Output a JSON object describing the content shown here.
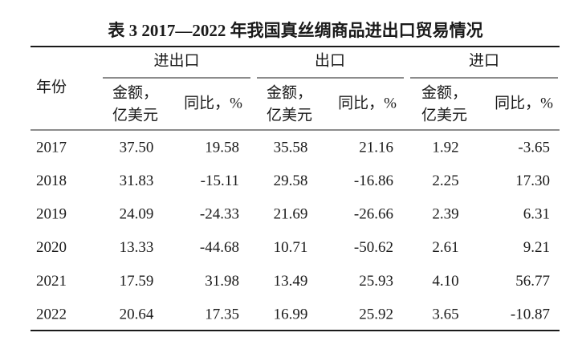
{
  "title": "表 3 2017—2022 年我国真丝绸商品进出口贸易情况",
  "header": {
    "year": "年份",
    "groups": [
      {
        "label": "进出口",
        "amount": [
          "金额，",
          "亿美元"
        ],
        "ratio": "同比，%"
      },
      {
        "label": "出口",
        "amount": [
          "金额，",
          "亿美元"
        ],
        "ratio": "同比，%"
      },
      {
        "label": "进口",
        "amount": [
          "金额，",
          "亿美元"
        ],
        "ratio": "同比，%"
      }
    ]
  },
  "rows": [
    [
      "2017",
      "37.50",
      "19.58",
      "35.58",
      "21.16",
      "1.92",
      "-3.65"
    ],
    [
      "2018",
      "31.83",
      "-15.11",
      "29.58",
      "-16.86",
      "2.25",
      "17.30"
    ],
    [
      "2019",
      "24.09",
      "-24.33",
      "21.69",
      "-26.66",
      "2.39",
      "6.31"
    ],
    [
      "2020",
      "13.33",
      "-44.68",
      "10.71",
      "-50.62",
      "2.61",
      "9.21"
    ],
    [
      "2021",
      "17.59",
      "31.98",
      "13.49",
      "25.93",
      "4.10",
      "56.77"
    ],
    [
      "2022",
      "20.64",
      "17.35",
      "16.99",
      "25.92",
      "3.65",
      "-10.87"
    ]
  ]
}
